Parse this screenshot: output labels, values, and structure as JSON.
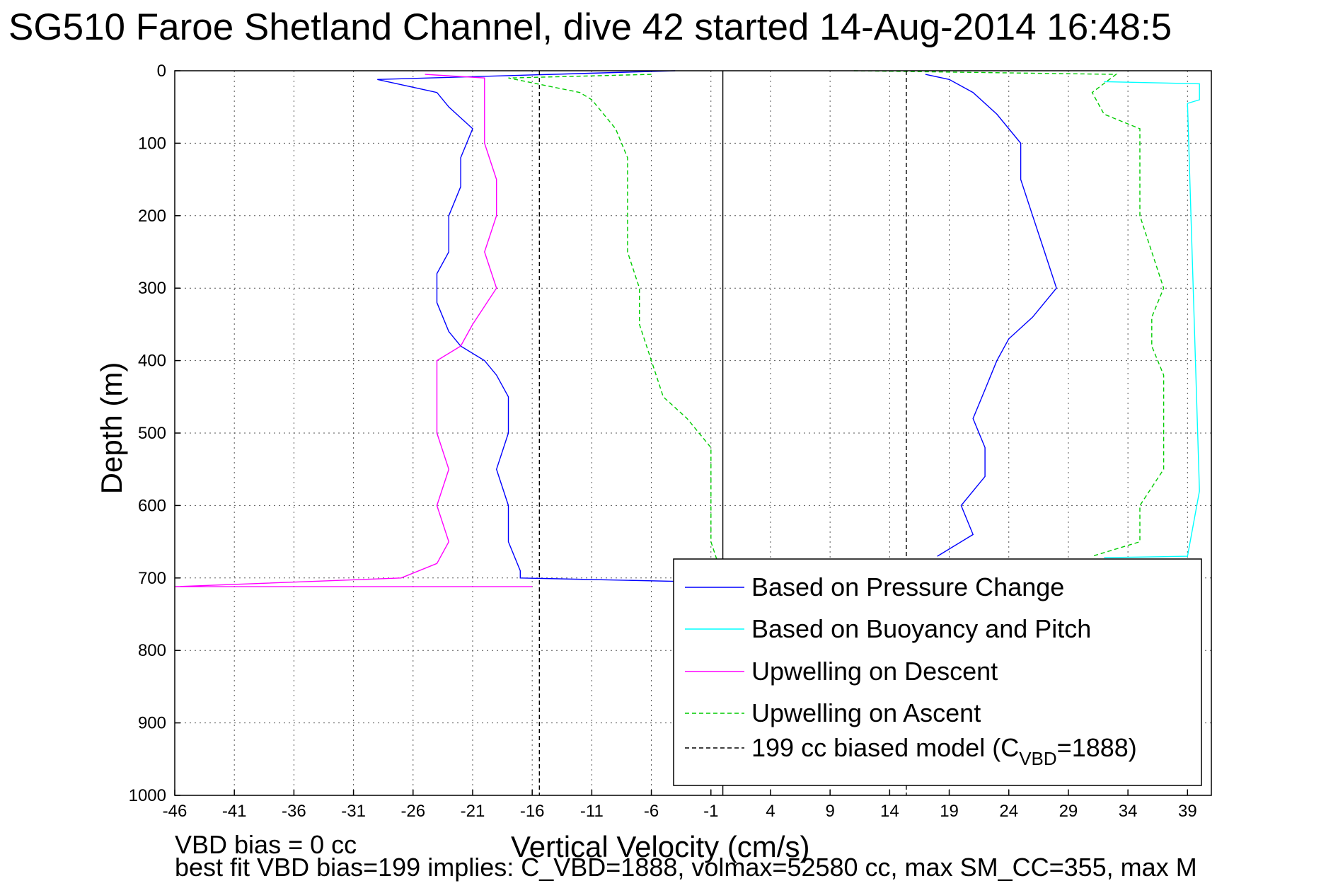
{
  "chart_data": {
    "type": "line",
    "title": "SG510 Faroe Shetland Channel, dive 42 started 14-Aug-2014 16:48:5",
    "xlabel": "Vertical Velocity (cm/s)",
    "ylabel": "Depth (m)",
    "xlim": [
      -46,
      41
    ],
    "ylim": [
      0,
      1000
    ],
    "y_reversed": true,
    "xticks": [
      -46,
      -41,
      -36,
      -31,
      -26,
      -21,
      -16,
      -11,
      -6,
      -1,
      4,
      9,
      14,
      19,
      24,
      29,
      34,
      39
    ],
    "yticks": [
      0,
      100,
      200,
      300,
      400,
      500,
      600,
      700,
      800,
      900,
      1000
    ],
    "grid": true,
    "legend_position": "lower-right",
    "footer_lines": [
      "VBD bias = 0 cc",
      "best fit VBD bias=199 implies: C_VBD=1888, volmax=52580 cc, max SM_CC=355, max M"
    ],
    "series": [
      {
        "name": "Based on Pressure Change",
        "color": "#0000ff",
        "style": "solid",
        "points": [
          [
            -4,
            0
          ],
          [
            -29,
            12
          ],
          [
            -24,
            30
          ],
          [
            -23,
            50
          ],
          [
            -21,
            80
          ],
          [
            -22,
            120
          ],
          [
            -22,
            160
          ],
          [
            -23,
            200
          ],
          [
            -23,
            250
          ],
          [
            -24,
            280
          ],
          [
            -24,
            320
          ],
          [
            -23,
            360
          ],
          [
            -22,
            380
          ],
          [
            -20,
            400
          ],
          [
            -19,
            420
          ],
          [
            -18,
            450
          ],
          [
            -18,
            500
          ],
          [
            -19,
            550
          ],
          [
            -18,
            600
          ],
          [
            -18,
            650
          ],
          [
            -17,
            690
          ],
          [
            -17,
            700
          ],
          [
            -3,
            705
          ],
          [
            0,
            712
          ]
        ]
      },
      {
        "name": "Based on Pressure Change",
        "color": "#0000ff",
        "style": "solid",
        "points": [
          [
            17,
            5
          ],
          [
            19,
            12
          ],
          [
            21,
            30
          ],
          [
            23,
            60
          ],
          [
            25,
            100
          ],
          [
            25,
            150
          ],
          [
            26,
            200
          ],
          [
            27,
            250
          ],
          [
            28,
            300
          ],
          [
            26,
            340
          ],
          [
            24,
            370
          ],
          [
            23,
            400
          ],
          [
            22,
            440
          ],
          [
            21,
            480
          ],
          [
            22,
            520
          ],
          [
            22,
            560
          ],
          [
            20,
            600
          ],
          [
            21,
            640
          ],
          [
            18,
            670
          ]
        ]
      },
      {
        "name": "Based on Buoyancy and Pitch",
        "color": "#00ffff",
        "style": "solid",
        "points": [
          [
            32,
            15
          ],
          [
            40,
            18
          ],
          [
            40,
            40
          ],
          [
            39,
            45
          ],
          [
            40,
            580
          ],
          [
            39,
            670
          ],
          [
            32,
            672
          ]
        ]
      },
      {
        "name": "Upwelling on Descent",
        "color": "#ff00ff",
        "style": "solid",
        "points": [
          [
            -25,
            5
          ],
          [
            -20,
            10
          ],
          [
            -20,
            30
          ],
          [
            -20,
            60
          ],
          [
            -20,
            100
          ],
          [
            -19,
            150
          ],
          [
            -19,
            200
          ],
          [
            -20,
            250
          ],
          [
            -19,
            300
          ],
          [
            -21,
            350
          ],
          [
            -22,
            380
          ],
          [
            -24,
            400
          ],
          [
            -24,
            450
          ],
          [
            -24,
            500
          ],
          [
            -23,
            550
          ],
          [
            -24,
            600
          ],
          [
            -23,
            650
          ],
          [
            -24,
            680
          ],
          [
            -27,
            700
          ],
          [
            -46,
            712
          ],
          [
            -16,
            712
          ]
        ]
      },
      {
        "name": "Upwelling on Ascent",
        "color": "#00cc00",
        "style": "dashed",
        "points": [
          [
            -6,
            5
          ],
          [
            -18,
            10
          ],
          [
            -12,
            30
          ],
          [
            -11,
            40
          ],
          [
            -10,
            60
          ],
          [
            -9,
            80
          ],
          [
            -8,
            120
          ],
          [
            -8,
            200
          ],
          [
            -8,
            250
          ],
          [
            -7,
            300
          ],
          [
            -7,
            350
          ],
          [
            -6,
            400
          ],
          [
            -5,
            450
          ],
          [
            -3,
            480
          ],
          [
            -2,
            500
          ],
          [
            -1,
            520
          ],
          [
            -1,
            600
          ],
          [
            -1,
            650
          ],
          [
            0,
            700
          ]
        ]
      },
      {
        "name": "Upwelling on Ascent",
        "color": "#00cc00",
        "style": "dashed",
        "points": [
          [
            11,
            0
          ],
          [
            33,
            5
          ],
          [
            31,
            30
          ],
          [
            32,
            60
          ],
          [
            35,
            80
          ],
          [
            35,
            150
          ],
          [
            35,
            200
          ],
          [
            36,
            250
          ],
          [
            37,
            300
          ],
          [
            36,
            340
          ],
          [
            36,
            380
          ],
          [
            37,
            420
          ],
          [
            37,
            460
          ],
          [
            37,
            500
          ],
          [
            37,
            550
          ],
          [
            35,
            600
          ],
          [
            35,
            650
          ],
          [
            31,
            670
          ]
        ]
      },
      {
        "name": "199 cc biased model (C_VBD=1888)",
        "color": "#000000",
        "style": "dashed",
        "points": [
          [
            -15.4,
            0
          ],
          [
            -15.4,
            1000
          ]
        ]
      },
      {
        "name": "",
        "color": "#000000",
        "style": "dashed",
        "points": [
          [
            15.4,
            0
          ],
          [
            15.4,
            1000
          ]
        ]
      },
      {
        "name": "",
        "color": "#000000",
        "style": "solid",
        "points": [
          [
            0,
            0
          ],
          [
            0,
            1000
          ]
        ]
      }
    ],
    "legend": [
      {
        "label": "Based on Pressure Change",
        "color": "#0000ff",
        "style": "solid"
      },
      {
        "label": "Based on Buoyancy and Pitch",
        "color": "#00ffff",
        "style": "solid"
      },
      {
        "label": "Upwelling on Descent",
        "color": "#ff00ff",
        "style": "solid"
      },
      {
        "label": "Upwelling on Ascent",
        "color": "#00cc00",
        "style": "dashed"
      },
      {
        "label": "199 cc biased model (C",
        "sub": "VBD",
        "suffix": "=1888)",
        "color": "#000000",
        "style": "dashed"
      }
    ]
  }
}
